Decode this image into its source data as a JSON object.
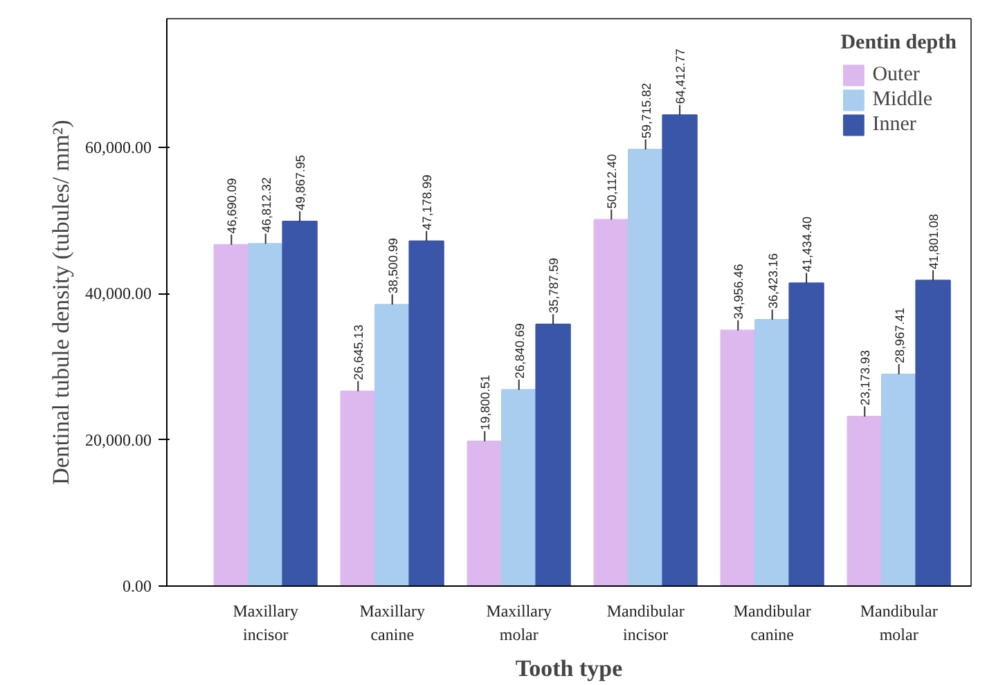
{
  "chart_data": {
    "type": "bar",
    "xlabel": "Tooth type",
    "ylabel": "Dentinal tubule density (tubules/ mm²)",
    "legend_title": "Dentin depth",
    "legend": "top right",
    "grid": false,
    "categories": [
      "Maxillary incisor",
      "Maxillary canine",
      "Maxillary molar",
      "Mandibular incisor",
      "Mandibular canine",
      "Mandibular molar"
    ],
    "ylim": [
      0,
      77600
    ],
    "yticks": [
      {
        "value": 0,
        "label": "0.00"
      },
      {
        "value": 20000,
        "label": "20,000.00"
      },
      {
        "value": 40000,
        "label": "40,000.00"
      },
      {
        "value": 60000,
        "label": "60,000.00"
      }
    ],
    "series": [
      {
        "name": "Outer",
        "color": "#dcb8ee",
        "values": [
          46690.09,
          26645.13,
          19800.51,
          50112.4,
          34956.46,
          23173.93
        ],
        "value_labels": [
          "46,690.09",
          "26,645.13",
          "19,800.51",
          "50,112.40",
          "34,956.46",
          "23,173.93"
        ]
      },
      {
        "name": "Middle",
        "color": "#a8cdee",
        "values": [
          46812.32,
          38500.99,
          26840.69,
          59715.82,
          36423.16,
          28967.41
        ],
        "value_labels": [
          "46,812.32",
          "38,500.99",
          "26,840.69",
          "59,715.82",
          "36,423.16",
          "28,967.41"
        ]
      },
      {
        "name": "Inner",
        "color": "#3a56a8",
        "values": [
          49867.95,
          47178.99,
          35787.59,
          64412.77,
          41434.4,
          41801.08
        ],
        "value_labels": [
          "49,867.95",
          "47,178.99",
          "35,787.59",
          "64,412.77",
          "41,434.40",
          "41,801.08"
        ]
      }
    ]
  }
}
